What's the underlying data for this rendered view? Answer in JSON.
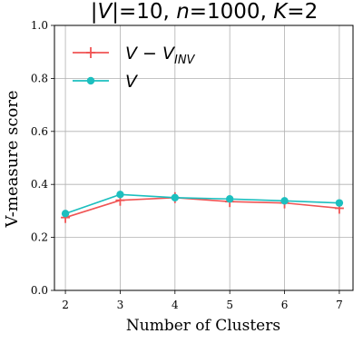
{
  "chart_data": {
    "type": "line",
    "title": "|V|=10, n=1000, K=2",
    "xlabel": "Number of Clusters",
    "ylabel": "V-measure score",
    "x": [
      2,
      3,
      4,
      5,
      6,
      7
    ],
    "xlim": [
      1.8,
      7.25
    ],
    "ylim": [
      0.0,
      1.0
    ],
    "xticks": [
      "2",
      "3",
      "4",
      "5",
      "6",
      "7"
    ],
    "yticks": [
      "0.0",
      "0.2",
      "0.4",
      "0.6",
      "0.8",
      "1.0"
    ],
    "grid": true,
    "legend_position": "top-left",
    "series": [
      {
        "name": "V − V_INV",
        "legend_main": "V − V",
        "legend_sub": "INV",
        "color": "#f05454",
        "marker": "plus",
        "values": [
          0.275,
          0.34,
          0.35,
          0.335,
          0.33,
          0.31
        ]
      },
      {
        "name": "V",
        "legend_main": "V",
        "legend_sub": "",
        "color": "#1cbfbf",
        "marker": "circle",
        "values": [
          0.29,
          0.362,
          0.35,
          0.345,
          0.338,
          0.33
        ]
      }
    ]
  }
}
